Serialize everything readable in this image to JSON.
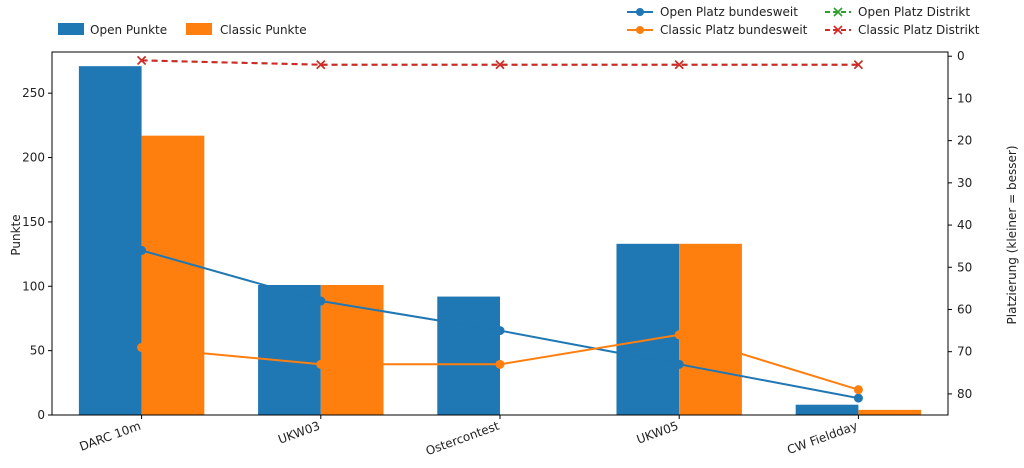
{
  "chart_data": {
    "type": "bar",
    "categories": [
      "DARC 10m",
      "UKW03",
      "Ostercontest",
      "UKW05",
      "CW Fieldday"
    ],
    "bar_series": [
      {
        "name": "Open Punkte",
        "values": [
          271,
          101,
          92,
          133,
          8
        ],
        "color": "#1f77b4"
      },
      {
        "name": "Classic Punkte",
        "values": [
          217,
          101,
          0,
          133,
          4
        ],
        "color": "#ff7f0e"
      }
    ],
    "line_series": [
      {
        "name": "Open Platz bundesweit",
        "values": [
          46,
          58,
          65,
          73,
          81
        ],
        "color": "#1f77b4",
        "marker": "circle",
        "style": "solid"
      },
      {
        "name": "Classic Platz bundesweit",
        "values": [
          69,
          73,
          73,
          66,
          79
        ],
        "color": "#ff7f0e",
        "marker": "circle",
        "style": "solid"
      },
      {
        "name": "Open Platz Distrikt",
        "values": [
          1,
          2,
          2,
          2,
          2
        ],
        "color": "#2ca02c",
        "marker": "x",
        "style": "dashed"
      },
      {
        "name": "Classic Platz Distrikt",
        "values": [
          1,
          2,
          2,
          2,
          2
        ],
        "color": "#d62728",
        "marker": "x",
        "style": "dashed"
      }
    ],
    "ylabel_left": "Punkte",
    "ylabel_right": "Platzierung (kleiner = besser)",
    "ylim_left": [
      0,
      282
    ],
    "yticks_left": [
      0,
      50,
      100,
      150,
      200,
      250
    ],
    "ylim_right": [
      85,
      -1
    ],
    "yticks_right": [
      0,
      10,
      20,
      30,
      40,
      50,
      60,
      70,
      80
    ],
    "right_axis_inverted": true,
    "grid": false,
    "legend_left_placement": "top-left, outside",
    "legend_right_placement": "top-right, outside"
  }
}
